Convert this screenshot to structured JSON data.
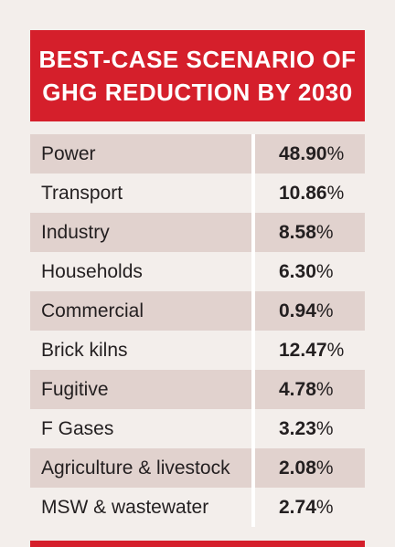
{
  "chart_data": {
    "type": "table",
    "title_lines": [
      "BEST-CASE SCENARIO OF",
      "GHG REDUCTION BY 2030"
    ],
    "rows": [
      {
        "sector": "Power",
        "value": "48.90",
        "unit": "%"
      },
      {
        "sector": "Transport",
        "value": "10.86",
        "unit": "%"
      },
      {
        "sector": "Industry",
        "value": "8.58",
        "unit": "%"
      },
      {
        "sector": "Households",
        "value": "6.30",
        "unit": "%"
      },
      {
        "sector": "Commercial",
        "value": "0.94",
        "unit": "%"
      },
      {
        "sector": "Brick kilns",
        "value": "12.47",
        "unit": "%"
      },
      {
        "sector": "Fugitive",
        "value": "4.78",
        "unit": "%"
      },
      {
        "sector": "F Gases",
        "value": "3.23",
        "unit": "%"
      },
      {
        "sector": "Agriculture & livestock",
        "value": "2.08",
        "unit": "%"
      },
      {
        "sector": "MSW & wastewater",
        "value": "2.74",
        "unit": "%"
      }
    ],
    "colors": {
      "header": "#d51f2b",
      "shaded_row": "#e1d2ce",
      "background": "#f3eeeb"
    }
  }
}
